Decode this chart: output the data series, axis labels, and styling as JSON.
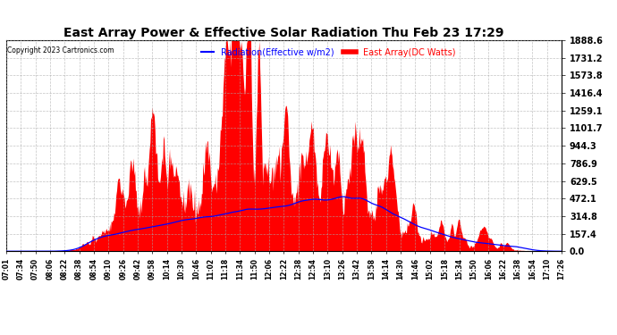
{
  "title": "East Array Power & Effective Solar Radiation Thu Feb 23 17:29",
  "copyright": "Copyright 2023 Cartronics.com",
  "legend_blue": "Radiation(Effective w/m2)",
  "legend_red": "East Array(DC Watts)",
  "ymin": 0.0,
  "ymax": 1888.6,
  "yticks": [
    0.0,
    157.4,
    314.8,
    472.1,
    629.5,
    786.9,
    944.3,
    1101.7,
    1259.1,
    1416.4,
    1573.8,
    1731.2,
    1888.6
  ],
  "bg_color": "#ffffff",
  "grid_color": "#aaaaaa",
  "red_color": "#ff0000",
  "blue_color": "#0000ff",
  "title_color": "#000000",
  "copyright_color": "#000000",
  "legend_blue_color": "#0000ff",
  "legend_red_color": "#ff0000",
  "x_labels": [
    "07:01",
    "07:34",
    "07:50",
    "08:06",
    "08:22",
    "08:38",
    "08:54",
    "09:10",
    "09:26",
    "09:42",
    "09:58",
    "10:14",
    "10:30",
    "10:46",
    "11:02",
    "11:18",
    "11:34",
    "11:50",
    "12:06",
    "12:22",
    "12:38",
    "12:54",
    "13:10",
    "13:26",
    "13:42",
    "13:58",
    "14:14",
    "14:30",
    "14:46",
    "15:02",
    "15:18",
    "15:34",
    "15:50",
    "16:06",
    "16:22",
    "16:38",
    "16:54",
    "17:10",
    "17:26"
  ]
}
